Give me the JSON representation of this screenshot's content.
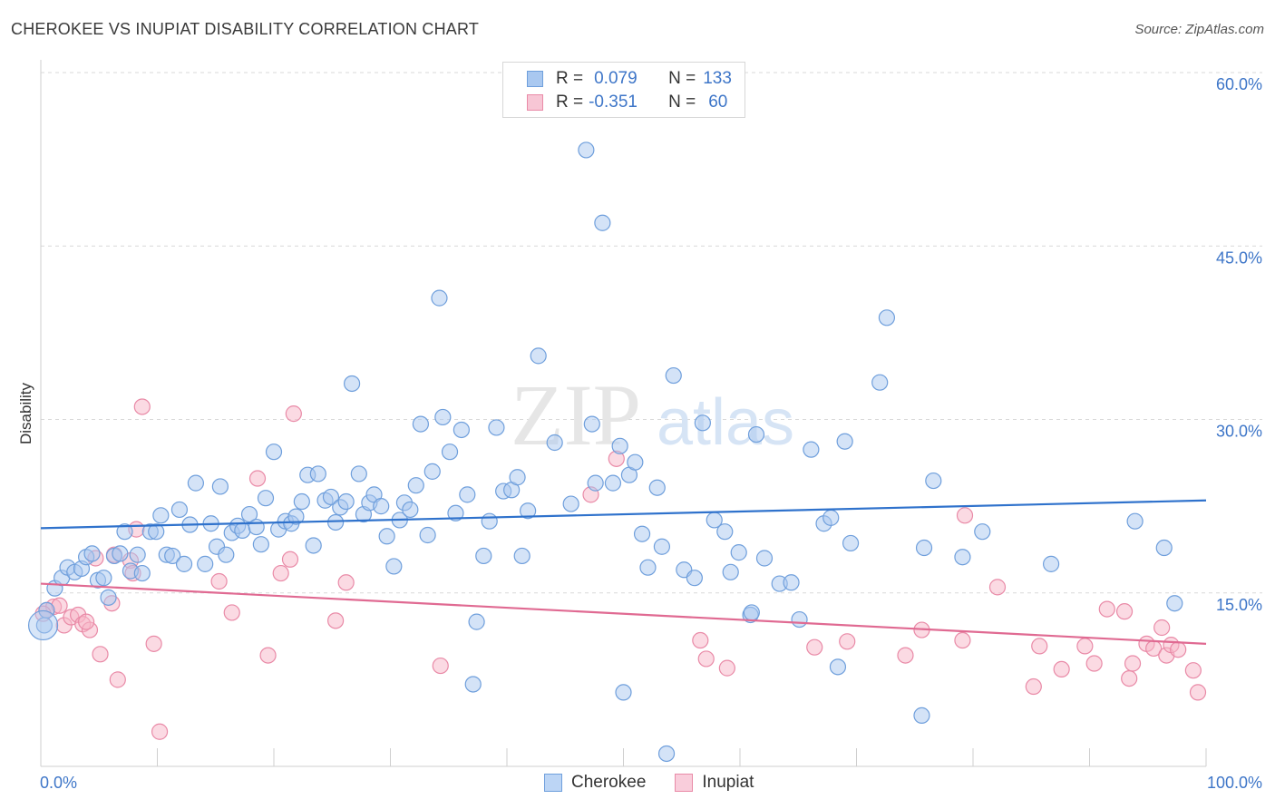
{
  "title": "CHEROKEE VS INUPIAT DISABILITY CORRELATION CHART",
  "source": "Source: ZipAtlas.com",
  "watermark": {
    "zip": "ZIP",
    "atlas": "atlas"
  },
  "legend": {
    "rows": [
      {
        "r_label": "R =",
        "r_value": "0.079",
        "n_label": "N =",
        "n_value": "133"
      },
      {
        "r_label": "R =",
        "r_value": "-0.351",
        "n_label": "N =",
        "n_value": "60"
      }
    ]
  },
  "bottom_legend": {
    "series1": "Cherokee",
    "series2": "Inupiat"
  },
  "colors": {
    "cherokee_fill": "#a9c8f0",
    "cherokee_stroke": "#6f9fdc",
    "cherokee_line": "#2f72cc",
    "inupiat_fill": "#f7b6c8",
    "inupiat_stroke": "#e98aa7",
    "inupiat_line": "#e06a92",
    "tick_text": "#3e76c8",
    "grid": "#d9d9d9"
  },
  "chart_data": {
    "type": "scatter",
    "title": "CHEROKEE VS INUPIAT DISABILITY CORRELATION CHART",
    "xlabel": "",
    "ylabel": "Disability",
    "xlim": [
      0,
      100
    ],
    "ylim": [
      0,
      60
    ],
    "x_tick_labels": [
      "0.0%",
      "100.0%"
    ],
    "y_ticks": [
      15,
      30,
      45,
      60
    ],
    "y_tick_labels": [
      "15.0%",
      "30.0%",
      "45.0%",
      "60.0%"
    ],
    "grid": true,
    "legend_position": "top-center",
    "series": [
      {
        "name": "Cherokee",
        "r": 0.079,
        "n": 133,
        "trend": {
          "x": [
            0,
            100
          ],
          "y": [
            20.6,
            23.0
          ]
        },
        "points": [
          [
            0.5,
            13.5
          ],
          [
            1.2,
            15.4
          ],
          [
            1.8,
            16.3
          ],
          [
            2.3,
            17.2
          ],
          [
            2.9,
            16.8
          ],
          [
            3.5,
            17.1
          ],
          [
            3.9,
            18.1
          ],
          [
            4.4,
            18.4
          ],
          [
            4.9,
            16.1
          ],
          [
            5.4,
            16.3
          ],
          [
            5.8,
            14.6
          ],
          [
            6.3,
            18.2
          ],
          [
            6.8,
            18.4
          ],
          [
            7.2,
            20.3
          ],
          [
            7.7,
            16.9
          ],
          [
            8.3,
            18.3
          ],
          [
            8.7,
            16.7
          ],
          [
            9.4,
            20.3
          ],
          [
            9.9,
            20.3
          ],
          [
            10.3,
            21.7
          ],
          [
            10.8,
            18.3
          ],
          [
            11.3,
            18.2
          ],
          [
            11.9,
            22.2
          ],
          [
            12.3,
            17.5
          ],
          [
            12.8,
            20.9
          ],
          [
            13.3,
            24.5
          ],
          [
            14.1,
            17.5
          ],
          [
            14.6,
            21.0
          ],
          [
            15.1,
            19.0
          ],
          [
            15.4,
            24.2
          ],
          [
            15.9,
            18.3
          ],
          [
            16.4,
            20.2
          ],
          [
            16.9,
            20.8
          ],
          [
            17.3,
            20.4
          ],
          [
            17.9,
            21.8
          ],
          [
            18.5,
            20.7
          ],
          [
            18.9,
            19.2
          ],
          [
            19.3,
            23.2
          ],
          [
            20.0,
            27.2
          ],
          [
            20.4,
            20.5
          ],
          [
            21.0,
            21.2
          ],
          [
            21.5,
            21.0
          ],
          [
            21.9,
            21.6
          ],
          [
            22.4,
            22.9
          ],
          [
            22.9,
            25.2
          ],
          [
            23.4,
            19.1
          ],
          [
            23.8,
            25.3
          ],
          [
            24.4,
            23.0
          ],
          [
            24.9,
            23.3
          ],
          [
            25.3,
            21.1
          ],
          [
            25.7,
            22.4
          ],
          [
            26.2,
            22.9
          ],
          [
            26.7,
            33.1
          ],
          [
            27.3,
            25.3
          ],
          [
            27.7,
            21.8
          ],
          [
            28.2,
            22.8
          ],
          [
            28.6,
            23.5
          ],
          [
            29.2,
            22.5
          ],
          [
            29.7,
            19.9
          ],
          [
            30.3,
            17.3
          ],
          [
            30.8,
            21.3
          ],
          [
            31.2,
            22.8
          ],
          [
            31.7,
            22.2
          ],
          [
            32.2,
            24.3
          ],
          [
            32.6,
            29.6
          ],
          [
            33.2,
            20.0
          ],
          [
            33.6,
            25.5
          ],
          [
            34.2,
            40.5
          ],
          [
            34.5,
            30.2
          ],
          [
            35.1,
            27.2
          ],
          [
            35.6,
            21.9
          ],
          [
            36.1,
            29.1
          ],
          [
            36.6,
            23.5
          ],
          [
            37.1,
            7.1
          ],
          [
            37.4,
            12.5
          ],
          [
            38.0,
            18.2
          ],
          [
            38.5,
            21.2
          ],
          [
            39.1,
            29.3
          ],
          [
            39.7,
            23.8
          ],
          [
            40.4,
            23.9
          ],
          [
            40.9,
            25.0
          ],
          [
            41.3,
            18.2
          ],
          [
            41.8,
            22.1
          ],
          [
            42.7,
            35.5
          ],
          [
            44.1,
            28.0
          ],
          [
            45.5,
            22.7
          ],
          [
            46.8,
            53.3
          ],
          [
            47.3,
            29.6
          ],
          [
            47.6,
            24.5
          ],
          [
            48.2,
            47.0
          ],
          [
            49.1,
            24.5
          ],
          [
            49.7,
            27.7
          ],
          [
            50.0,
            6.4
          ],
          [
            50.5,
            25.2
          ],
          [
            51.0,
            26.3
          ],
          [
            51.6,
            20.1
          ],
          [
            52.1,
            17.2
          ],
          [
            52.9,
            24.1
          ],
          [
            53.3,
            19.0
          ],
          [
            53.7,
            1.1
          ],
          [
            54.3,
            33.8
          ],
          [
            55.2,
            17.0
          ],
          [
            56.1,
            16.3
          ],
          [
            56.8,
            29.7
          ],
          [
            57.8,
            21.3
          ],
          [
            58.7,
            20.3
          ],
          [
            59.2,
            16.8
          ],
          [
            59.9,
            18.5
          ],
          [
            60.9,
            13.1
          ],
          [
            61.4,
            28.7
          ],
          [
            62.1,
            18.0
          ],
          [
            63.4,
            15.8
          ],
          [
            64.4,
            15.9
          ],
          [
            65.1,
            12.7
          ],
          [
            66.1,
            27.4
          ],
          [
            67.2,
            21.0
          ],
          [
            67.8,
            21.5
          ],
          [
            68.4,
            8.6
          ],
          [
            69.0,
            28.1
          ],
          [
            69.5,
            19.3
          ],
          [
            72.0,
            33.2
          ],
          [
            72.6,
            38.8
          ],
          [
            75.6,
            4.4
          ],
          [
            75.8,
            18.9
          ],
          [
            76.6,
            24.7
          ],
          [
            79.1,
            18.1
          ],
          [
            80.8,
            20.3
          ],
          [
            86.7,
            17.5
          ],
          [
            93.9,
            21.2
          ],
          [
            96.4,
            18.9
          ],
          [
            97.3,
            14.1
          ],
          [
            0.3,
            12.2
          ],
          [
            61.0,
            13.3
          ]
        ]
      },
      {
        "name": "Inupiat",
        "r": -0.351,
        "n": 60,
        "trend": {
          "x": [
            0,
            100
          ],
          "y": [
            15.8,
            10.6
          ]
        },
        "points": [
          [
            0.5,
            13.5
          ],
          [
            1.1,
            13.8
          ],
          [
            1.6,
            13.9
          ],
          [
            2.0,
            12.2
          ],
          [
            2.6,
            12.9
          ],
          [
            3.2,
            13.1
          ],
          [
            3.6,
            12.3
          ],
          [
            4.2,
            11.8
          ],
          [
            4.7,
            18.0
          ],
          [
            5.1,
            9.7
          ],
          [
            6.1,
            14.1
          ],
          [
            6.3,
            18.3
          ],
          [
            6.6,
            7.5
          ],
          [
            7.7,
            17.8
          ],
          [
            7.9,
            16.7
          ],
          [
            8.2,
            20.5
          ],
          [
            8.7,
            31.1
          ],
          [
            9.7,
            10.6
          ],
          [
            10.2,
            3.0
          ],
          [
            15.3,
            16.0
          ],
          [
            16.4,
            13.3
          ],
          [
            18.6,
            24.9
          ],
          [
            19.5,
            9.6
          ],
          [
            20.6,
            16.7
          ],
          [
            21.4,
            17.9
          ],
          [
            21.7,
            30.5
          ],
          [
            25.3,
            12.6
          ],
          [
            26.2,
            15.9
          ],
          [
            34.3,
            8.7
          ],
          [
            47.2,
            23.5
          ],
          [
            49.4,
            26.6
          ],
          [
            56.6,
            10.9
          ],
          [
            57.1,
            9.3
          ],
          [
            58.9,
            8.5
          ],
          [
            66.4,
            10.3
          ],
          [
            69.2,
            10.8
          ],
          [
            74.2,
            9.6
          ],
          [
            75.6,
            11.8
          ],
          [
            79.3,
            21.7
          ],
          [
            79.1,
            10.9
          ],
          [
            82.1,
            15.5
          ],
          [
            85.2,
            6.9
          ],
          [
            85.7,
            10.4
          ],
          [
            87.6,
            8.4
          ],
          [
            89.6,
            10.4
          ],
          [
            90.4,
            8.9
          ],
          [
            91.5,
            13.6
          ],
          [
            93.0,
            13.4
          ],
          [
            93.4,
            7.6
          ],
          [
            93.7,
            8.9
          ],
          [
            94.9,
            10.6
          ],
          [
            95.5,
            10.2
          ],
          [
            96.2,
            12.0
          ],
          [
            96.6,
            9.6
          ],
          [
            97.0,
            10.5
          ],
          [
            97.6,
            10.1
          ],
          [
            98.9,
            8.3
          ],
          [
            99.3,
            6.4
          ],
          [
            0.2,
            13.2
          ],
          [
            3.9,
            12.5
          ]
        ]
      }
    ]
  }
}
